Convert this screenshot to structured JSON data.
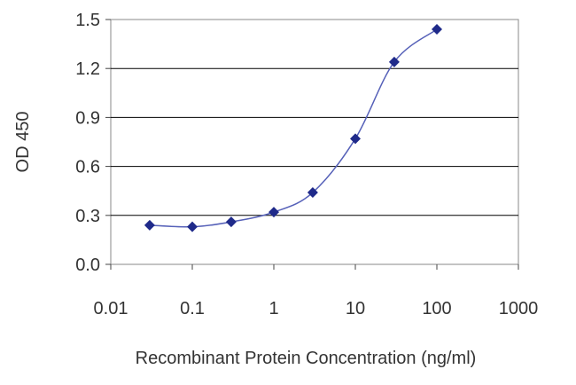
{
  "chart_data": {
    "type": "scatter",
    "title": "",
    "xlabel": "Recombinant Protein Concentration (ng/ml)",
    "ylabel": "OD 450",
    "x_scale": "log10",
    "xlim": [
      0.01,
      1000
    ],
    "ylim": [
      0.0,
      1.5
    ],
    "x_tick_labels": [
      "0.01",
      "0.1",
      "1",
      "10",
      "100",
      "1000"
    ],
    "y_tick_labels": [
      "0.0",
      "0.3",
      "0.6",
      "0.9",
      "1.2",
      "1.5"
    ],
    "grid": "horizontal",
    "legend": "none",
    "series": [
      {
        "x": [
          0.03,
          0.1,
          0.3,
          1,
          3,
          10,
          30,
          100
        ],
        "y": [
          0.24,
          0.23,
          0.26,
          0.32,
          0.44,
          0.77,
          1.24,
          1.44
        ],
        "line": "smooth fitted curve",
        "marker": "diamond",
        "color": "#1f2a8a"
      }
    ],
    "plot_background": "#ffffff",
    "grid_color": "#000000"
  }
}
